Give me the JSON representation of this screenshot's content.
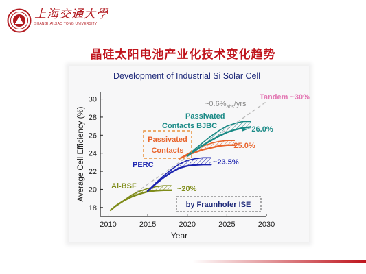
{
  "header": {
    "logo_text_cn": "上海交通大學",
    "logo_text_en": "SHANGHAI JIAO TONG UNIVERSITY",
    "slide_title": "晶硅太阳电池产业化技术变化趋势"
  },
  "colors": {
    "brand_red": "#b2191f",
    "title_red": "#c0141c",
    "tandem_pink": "#e377b3",
    "bjbc_teal": "#1a8a86",
    "passivated_orange": "#e8642c",
    "perc_blue": "#1c24b0",
    "albsf_olive": "#7f8c1a",
    "dashed_gray": "#b8b8b8",
    "axis_dark": "#222222"
  },
  "chart_data": {
    "type": "line",
    "title": "Development of Industrial Si Solar Cell",
    "xlabel": "Year",
    "ylabel": "Average Cell Efficiency (%)",
    "xlim": [
      2009,
      2030
    ],
    "ylim": [
      17,
      30.8
    ],
    "xticks": [
      2010,
      2015,
      2020,
      2025,
      2030
    ],
    "yticks": [
      18,
      20,
      22,
      24,
      26,
      28,
      30
    ],
    "series": [
      {
        "name": "Al-BSF",
        "color": "#7f8c1a",
        "x": [
          2010.3,
          2011,
          2012,
          2013,
          2014,
          2015,
          2016,
          2017,
          2018
        ],
        "y": [
          17.7,
          18.2,
          18.75,
          19.2,
          19.5,
          19.75,
          19.85,
          19.9,
          19.9
        ],
        "upper_y": [
          17.7,
          18.2,
          18.8,
          19.4,
          19.8,
          20.1,
          20.3,
          20.4,
          20.4
        ],
        "end_label": "~20%"
      },
      {
        "name": "PERC",
        "color": "#1c24b0",
        "x": [
          2015,
          2016,
          2017,
          2018,
          2019,
          2020,
          2021,
          2022,
          2023
        ],
        "y": [
          19.8,
          20.6,
          21.3,
          21.9,
          22.35,
          22.6,
          22.7,
          22.75,
          22.75
        ],
        "upper_y": [
          19.8,
          20.7,
          21.5,
          22.2,
          22.8,
          23.2,
          23.4,
          23.5,
          23.5
        ],
        "end_label": "~23.5%"
      },
      {
        "name": "Passivated Contacts",
        "color": "#e8642c",
        "x": [
          2019,
          2020,
          2021,
          2022,
          2023,
          2024,
          2025,
          2026
        ],
        "y": [
          23.4,
          23.8,
          24.1,
          24.4,
          24.6,
          24.8,
          24.9,
          24.9
        ],
        "upper_y": [
          23.4,
          23.9,
          24.4,
          24.8,
          25.1,
          25.3,
          25.4,
          25.4
        ],
        "end_label": "~25.0%"
      },
      {
        "name": "Passivated Contacts BJBC",
        "color": "#1a8a86",
        "x": [
          2020,
          2021,
          2022,
          2023,
          2024,
          2025,
          2026,
          2027,
          2028
        ],
        "y": [
          23.7,
          24.3,
          24.9,
          25.4,
          25.9,
          26.3,
          26.6,
          26.8,
          26.9
        ],
        "upper_y": [
          23.7,
          24.5,
          25.2,
          25.9,
          26.5,
          27.0,
          27.3,
          27.5,
          27.5
        ],
        "end_label": "~26.0%"
      }
    ],
    "trend_line": {
      "label": "~0.6%abs/yrs",
      "label_main": "~0.6%",
      "label_sub": "abs",
      "label_tail": "/yrs",
      "x": [
        2010.3,
        2030
      ],
      "y": [
        17.7,
        29.7
      ],
      "style": "dashed"
    },
    "annotations": [
      {
        "text": "Tandem ~30%",
        "color": "#e377b3"
      },
      {
        "text": "Passivated",
        "color": "#1a8a86"
      },
      {
        "text": "Contacts BJBC",
        "color": "#1a8a86"
      },
      {
        "text": "Passivated",
        "color": "#e8642c"
      },
      {
        "text": "Contacts",
        "color": "#e8642c"
      },
      {
        "text": "PERC",
        "color": "#1c24b0"
      },
      {
        "text": "Al-BSF",
        "color": "#7f8c1a"
      },
      {
        "text": "by Fraunhofer ISE",
        "color": "#1f2a7a"
      }
    ],
    "grid": false,
    "legend": "none"
  }
}
